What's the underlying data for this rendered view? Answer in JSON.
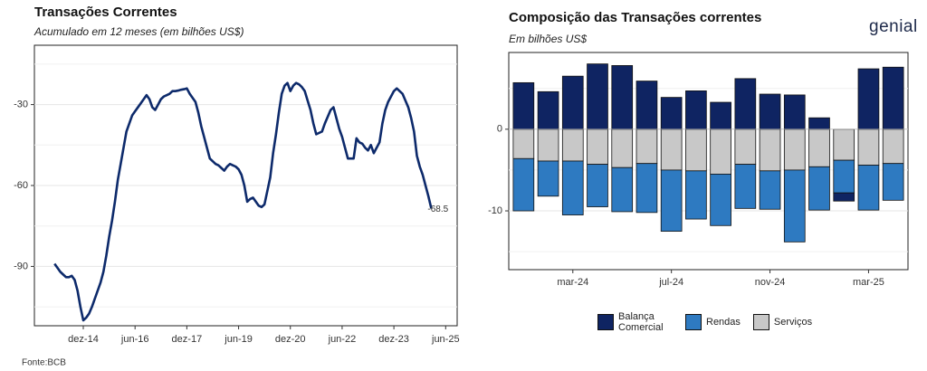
{
  "brand": "genial",
  "chart_data": [
    {
      "type": "line",
      "title": "Transações Correntes",
      "subtitle": "Acumulado em 12 meses (em bilhões US$)",
      "source": "Fonte:BCB",
      "color": "#0d2a6b",
      "x": [
        "2014-02",
        "2014-03",
        "2014-04",
        "2014-05",
        "2014-06",
        "2014-07",
        "2014-08",
        "2014-09",
        "2014-10",
        "2014-11",
        "2014-12",
        "2015-01",
        "2015-02",
        "2015-03",
        "2015-04",
        "2015-05",
        "2015-06",
        "2015-07",
        "2015-08",
        "2015-09",
        "2015-10",
        "2015-11",
        "2015-12",
        "2016-01",
        "2016-02",
        "2016-03",
        "2016-04",
        "2016-05",
        "2016-06",
        "2016-07",
        "2016-08",
        "2016-09",
        "2016-10",
        "2016-11",
        "2016-12",
        "2017-01",
        "2017-02",
        "2017-03",
        "2017-04",
        "2017-05",
        "2017-06",
        "2017-07",
        "2017-08",
        "2017-09",
        "2017-10",
        "2017-11",
        "2017-12",
        "2018-01",
        "2018-02",
        "2018-03",
        "2018-04",
        "2018-05",
        "2018-06",
        "2018-07",
        "2018-08",
        "2018-09",
        "2018-10",
        "2018-11",
        "2018-12",
        "2019-01",
        "2019-02",
        "2019-03",
        "2019-04",
        "2019-05",
        "2019-06",
        "2019-07",
        "2019-08",
        "2019-09",
        "2019-10",
        "2019-11",
        "2019-12",
        "2020-01",
        "2020-02",
        "2020-03",
        "2020-04",
        "2020-05",
        "2020-06",
        "2020-07",
        "2020-08",
        "2020-09",
        "2020-10",
        "2020-11",
        "2020-12",
        "2021-01",
        "2021-02",
        "2021-03",
        "2021-04",
        "2021-05",
        "2021-06",
        "2021-07",
        "2021-08",
        "2021-09",
        "2021-10",
        "2021-11",
        "2021-12",
        "2022-01",
        "2022-02",
        "2022-03",
        "2022-04",
        "2022-05",
        "2022-06",
        "2022-07",
        "2022-08",
        "2022-09",
        "2022-10",
        "2022-11",
        "2022-12",
        "2023-01",
        "2023-02",
        "2023-03",
        "2023-04",
        "2023-05",
        "2023-06",
        "2023-07",
        "2023-08",
        "2023-09",
        "2023-10",
        "2023-11",
        "2023-12",
        "2024-01",
        "2024-02",
        "2024-03",
        "2024-04",
        "2024-05",
        "2024-06",
        "2024-07",
        "2024-08",
        "2024-09",
        "2024-10",
        "2024-11",
        "2024-12",
        "2025-01"
      ],
      "values": [
        -89,
        -90.5,
        -92,
        -93,
        -94,
        -94,
        -93.5,
        -95,
        -99,
        -105,
        -110,
        -109,
        -107.5,
        -105,
        -102,
        -99,
        -96,
        -92,
        -86,
        -79,
        -73,
        -66,
        -58,
        -52,
        -46,
        -40,
        -37,
        -34,
        -32.5,
        -31,
        -29.5,
        -28,
        -26.5,
        -28,
        -31,
        -32,
        -30,
        -28,
        -27,
        -26.5,
        -26,
        -25,
        -25,
        -24.8,
        -24.5,
        -24.3,
        -24,
        -26,
        -27.5,
        -29,
        -33,
        -38,
        -42,
        -46,
        -50,
        -51,
        -52,
        -52.5,
        -53.5,
        -54.5,
        -53,
        -52,
        -52.5,
        -53,
        -54,
        -56,
        -60,
        -66,
        -65,
        -64.5,
        -66,
        -67.5,
        -68,
        -67,
        -62,
        -57,
        -48,
        -41,
        -33,
        -26,
        -23,
        -22,
        -25,
        -23,
        -22,
        -22.5,
        -23.5,
        -25,
        -28.5,
        -32,
        -37,
        -41,
        -40.5,
        -40,
        -37,
        -34.5,
        -32,
        -31,
        -35,
        -39,
        -42,
        -46,
        -50,
        -50,
        -50,
        -42.5,
        -44,
        -44.5,
        -46,
        -47,
        -45,
        -48,
        -46,
        -44,
        -37,
        -32,
        -29,
        -27,
        -25,
        -24,
        -25,
        -26,
        -28.5,
        -31,
        -35,
        -40,
        -49,
        -53,
        -56,
        -60,
        -64,
        -68.5
      ],
      "xlim": [
        "2013-07",
        "2025-10"
      ],
      "xticks": [
        {
          "value": "2014-12",
          "label": "dez-14"
        },
        {
          "value": "2016-06",
          "label": "jun-16"
        },
        {
          "value": "2017-12",
          "label": "dez-17"
        },
        {
          "value": "2019-06",
          "label": "jun-19"
        },
        {
          "value": "2020-12",
          "label": "dez-20"
        },
        {
          "value": "2022-06",
          "label": "jun-22"
        },
        {
          "value": "2023-12",
          "label": "dez-23"
        },
        {
          "value": "2025-06",
          "label": "jun-25"
        }
      ],
      "ylim": [
        -112,
        -8
      ],
      "yticks": [
        -90,
        -60,
        -30
      ],
      "grid": true
    },
    {
      "type": "bar",
      "stacked": true,
      "title": "Composição das Transações correntes",
      "subtitle": "Em bilhões US$",
      "categories": [
        null,
        null,
        "mar-24",
        null,
        null,
        null,
        "jul-24",
        null,
        null,
        null,
        "nov-24",
        null,
        null,
        null,
        "mar-25",
        null
      ],
      "series": [
        {
          "name": "Balança Comercial",
          "color": "#0f2462",
          "values": [
            5.7,
            4.6,
            6.5,
            8.0,
            7.8,
            5.9,
            3.9,
            4.7,
            3.3,
            6.2,
            4.3,
            4.2,
            1.4,
            -1.0,
            7.4,
            7.6
          ]
        },
        {
          "name": "Rendas",
          "color": "#2e7ac1",
          "values": [
            -6.4,
            -4.3,
            -6.6,
            -5.2,
            -5.4,
            -6.0,
            -7.5,
            -5.9,
            -6.3,
            -5.4,
            -4.7,
            -8.8,
            -5.3,
            -4.0,
            -5.5,
            -4.5
          ]
        },
        {
          "name": "Serviços",
          "color": "#c8c8c8",
          "values": [
            -3.6,
            -3.9,
            -3.9,
            -4.3,
            -4.7,
            -4.2,
            -5.0,
            -5.1,
            -5.5,
            -4.3,
            -5.1,
            -5.0,
            -4.6,
            -3.8,
            -4.4,
            -4.2
          ]
        }
      ],
      "ylim": [
        -17.2,
        9.4
      ],
      "yticks": [
        -10,
        0
      ],
      "grid": true,
      "legend": "bottom"
    }
  ]
}
